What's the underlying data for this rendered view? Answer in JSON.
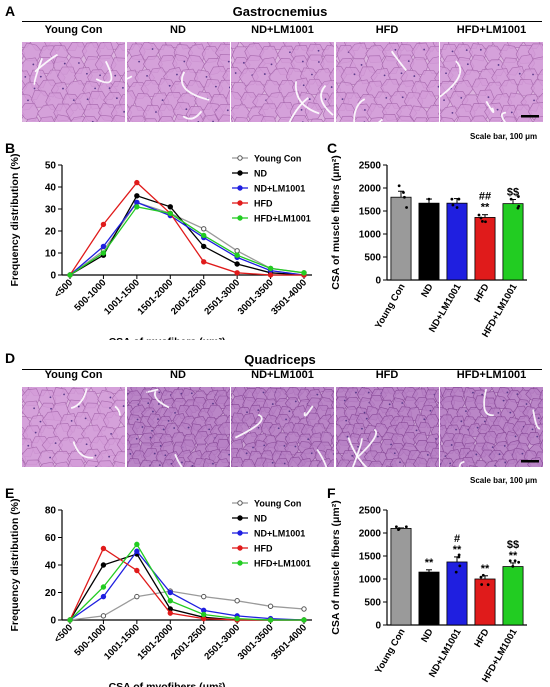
{
  "panels": {
    "A": {
      "letter": "A",
      "title": "Gastrocnemius",
      "groups": [
        "Young Con",
        "ND",
        "ND+LM1001",
        "HFD",
        "HFD+LM1001"
      ],
      "scale_bar": "Scale bar, 100 μm"
    },
    "D": {
      "letter": "D",
      "title": "Quadriceps",
      "groups": [
        "Young Con",
        "ND",
        "ND+LM1001",
        "HFD",
        "HFD+LM1001"
      ],
      "scale_bar": "Scale bar, 100 μm"
    },
    "B": {
      "letter": "B"
    },
    "C": {
      "letter": "C"
    },
    "E": {
      "letter": "E"
    },
    "F": {
      "letter": "F"
    }
  },
  "colors": {
    "young": "#9a9a9a",
    "nd": "#000000",
    "nd_lm": "#1f1fe0",
    "hfd": "#e01b1b",
    "hfd_lm": "#22cc22"
  },
  "chart_data": [
    {
      "panel": "B",
      "type": "line",
      "ylabel": "Frequency distribution (%)",
      "xlabel": "CSA of myofibers (μm²)",
      "categories": [
        "<500",
        "500-1000",
        "1001-1500",
        "1501-2000",
        "2001-2500",
        "2501-3000",
        "3001-3500",
        "3501-4000"
      ],
      "yticks": [
        0,
        10,
        20,
        30,
        40,
        50
      ],
      "ylim": [
        0,
        50
      ],
      "legend": "top-right",
      "series": [
        {
          "name": "Young Con",
          "key": "young",
          "values": [
            0,
            11,
            33,
            28,
            21,
            11,
            3,
            1
          ]
        },
        {
          "name": "ND",
          "key": "nd",
          "values": [
            0,
            9,
            36,
            31,
            13,
            5,
            1,
            0
          ]
        },
        {
          "name": "ND+LM1001",
          "key": "nd_lm",
          "values": [
            0,
            13,
            33,
            27,
            17,
            8,
            2,
            0
          ]
        },
        {
          "name": "HFD",
          "key": "hfd",
          "values": [
            0,
            23,
            42,
            28,
            6,
            1,
            0,
            0
          ]
        },
        {
          "name": "HFD+LM1001",
          "key": "hfd_lm",
          "values": [
            0,
            10,
            31,
            28,
            18,
            9,
            3,
            1
          ]
        }
      ]
    },
    {
      "panel": "C",
      "type": "bar",
      "ylabel": "CSA of muscle fibers (μm²)",
      "categories": [
        "Young Con",
        "ND",
        "ND+LM1001",
        "HFD",
        "HFD+LM1001"
      ],
      "values": [
        1800,
        1670,
        1670,
        1360,
        1660
      ],
      "errors": [
        130,
        90,
        100,
        60,
        90
      ],
      "yticks": [
        0,
        500,
        1000,
        1500,
        2000,
        2500
      ],
      "ylim": [
        0,
        2500
      ],
      "annotations": [
        "",
        "",
        "",
        "##\n**",
        "$$"
      ]
    },
    {
      "panel": "E",
      "type": "line",
      "ylabel": "Frequency distribution (%)",
      "xlabel": "CSA of myofibers (μm²)",
      "categories": [
        "<500",
        "500-1000",
        "1001-1500",
        "1501-2000",
        "2001-2500",
        "2501-3000",
        "3001-3500",
        "3501-4000"
      ],
      "yticks": [
        0,
        20,
        40,
        60,
        80
      ],
      "ylim": [
        0,
        80
      ],
      "legend": "top-right",
      "series": [
        {
          "name": "Young Con",
          "key": "young",
          "values": [
            0,
            3,
            17,
            21,
            17,
            14,
            10,
            8
          ]
        },
        {
          "name": "ND",
          "key": "nd",
          "values": [
            0,
            40,
            48,
            8,
            2,
            0,
            0,
            0
          ]
        },
        {
          "name": "ND+LM1001",
          "key": "nd_lm",
          "values": [
            0,
            17,
            50,
            20,
            7,
            3,
            1,
            0
          ]
        },
        {
          "name": "HFD",
          "key": "hfd",
          "values": [
            0,
            52,
            36,
            5,
            1,
            0,
            0,
            0
          ]
        },
        {
          "name": "HFD+LM1001",
          "key": "hfd_lm",
          "values": [
            0,
            24,
            55,
            14,
            4,
            1,
            0,
            0
          ]
        }
      ]
    },
    {
      "panel": "F",
      "type": "bar",
      "ylabel": "CSA of muscle fibers (μm²)",
      "categories": [
        "Young Con",
        "ND",
        "ND+LM1001",
        "HFD",
        "HFD+LM1001"
      ],
      "values": [
        2100,
        1150,
        1370,
        1000,
        1270
      ],
      "errors": [
        10,
        50,
        110,
        70,
        80
      ],
      "yticks": [
        0,
        500,
        1000,
        1500,
        2000,
        2500
      ],
      "ylim": [
        0,
        2500
      ],
      "annotations": [
        "",
        "**",
        "#\n**",
        "**",
        "$$\n**"
      ]
    }
  ]
}
